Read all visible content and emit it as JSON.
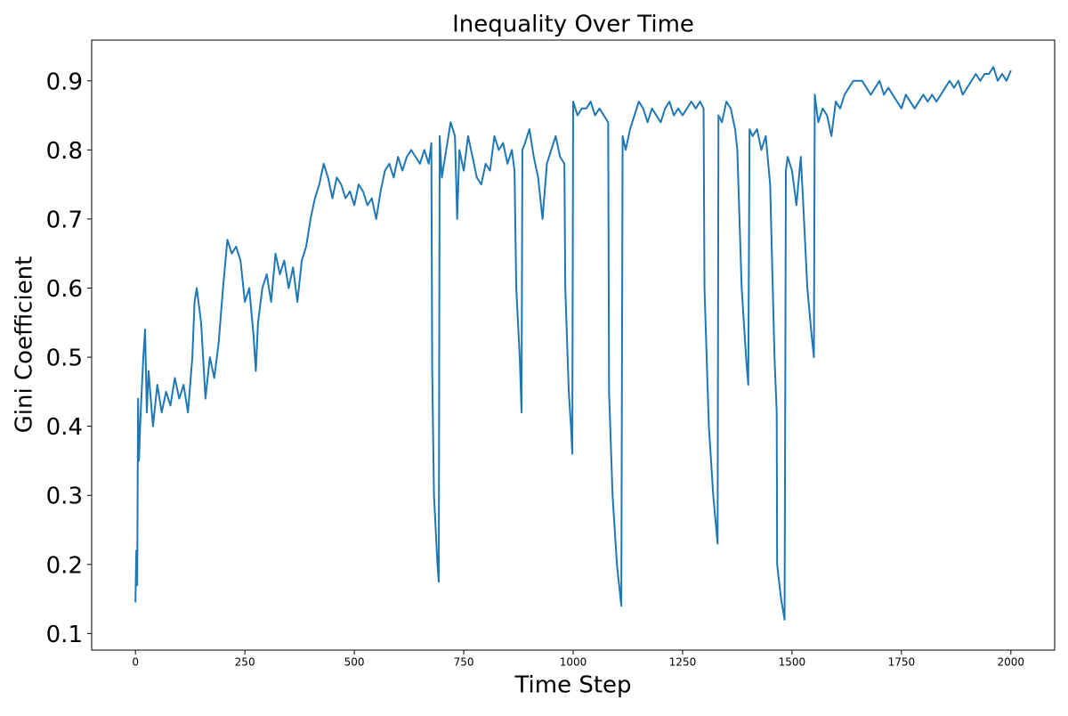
{
  "chart_data": {
    "type": "line",
    "title": "Inequality Over Time",
    "xlabel": "Time Step",
    "ylabel": "Gini Coefficient",
    "color": "#1f77b4",
    "grid": false,
    "xlim": [
      -100,
      2100
    ],
    "ylim": [
      0.076,
      0.959
    ],
    "xticks": [
      0,
      250,
      500,
      750,
      1000,
      1250,
      1500,
      1750,
      2000
    ],
    "yticks": [
      0.1,
      0.2,
      0.3,
      0.4,
      0.5,
      0.6,
      0.7,
      0.8,
      0.9
    ],
    "x": [
      0,
      2,
      4,
      6,
      8,
      12,
      18,
      22,
      26,
      30,
      40,
      50,
      60,
      70,
      80,
      90,
      100,
      110,
      120,
      130,
      135,
      140,
      150,
      160,
      170,
      180,
      190,
      200,
      210,
      220,
      230,
      240,
      250,
      260,
      270,
      275,
      280,
      290,
      300,
      310,
      320,
      330,
      340,
      350,
      360,
      370,
      380,
      390,
      400,
      410,
      420,
      430,
      440,
      450,
      460,
      470,
      480,
      490,
      500,
      510,
      520,
      530,
      540,
      550,
      560,
      570,
      580,
      590,
      600,
      610,
      620,
      630,
      640,
      650,
      660,
      670,
      676,
      678,
      682,
      690,
      693,
      695,
      700,
      710,
      720,
      730,
      735,
      740,
      750,
      760,
      770,
      780,
      790,
      800,
      810,
      820,
      830,
      840,
      850,
      860,
      866,
      870,
      878,
      882,
      884,
      890,
      900,
      910,
      920,
      930,
      940,
      950,
      960,
      970,
      980,
      982,
      990,
      995,
      998,
      1000,
      1010,
      1020,
      1030,
      1040,
      1050,
      1060,
      1070,
      1080,
      1082,
      1090,
      1100,
      1110,
      1113,
      1120,
      1130,
      1140,
      1150,
      1160,
      1170,
      1180,
      1190,
      1200,
      1210,
      1220,
      1230,
      1240,
      1250,
      1260,
      1270,
      1280,
      1290,
      1298,
      1300,
      1310,
      1320,
      1330,
      1332,
      1340,
      1350,
      1360,
      1370,
      1375,
      1385,
      1395,
      1400,
      1403,
      1410,
      1420,
      1430,
      1440,
      1450,
      1460,
      1465,
      1466,
      1475,
      1483,
      1486,
      1490,
      1500,
      1510,
      1520,
      1525,
      1535,
      1545,
      1550,
      1552,
      1560,
      1570,
      1580,
      1590,
      1600,
      1610,
      1620,
      1630,
      1640,
      1650,
      1660,
      1670,
      1680,
      1690,
      1700,
      1710,
      1720,
      1730,
      1740,
      1750,
      1760,
      1770,
      1780,
      1790,
      1800,
      1810,
      1820,
      1830,
      1840,
      1850,
      1860,
      1870,
      1880,
      1890,
      1900,
      1910,
      1920,
      1930,
      1940,
      1950,
      1960,
      1970,
      1980,
      1990,
      2000
    ],
    "values": [
      0.145,
      0.22,
      0.17,
      0.44,
      0.35,
      0.42,
      0.5,
      0.54,
      0.42,
      0.48,
      0.4,
      0.46,
      0.42,
      0.45,
      0.43,
      0.47,
      0.44,
      0.46,
      0.42,
      0.5,
      0.58,
      0.6,
      0.55,
      0.44,
      0.5,
      0.47,
      0.52,
      0.6,
      0.67,
      0.65,
      0.66,
      0.64,
      0.58,
      0.6,
      0.53,
      0.48,
      0.55,
      0.6,
      0.62,
      0.58,
      0.65,
      0.62,
      0.64,
      0.6,
      0.63,
      0.58,
      0.64,
      0.66,
      0.7,
      0.73,
      0.75,
      0.78,
      0.76,
      0.73,
      0.76,
      0.75,
      0.73,
      0.74,
      0.72,
      0.75,
      0.74,
      0.72,
      0.73,
      0.7,
      0.74,
      0.77,
      0.78,
      0.76,
      0.79,
      0.77,
      0.79,
      0.8,
      0.79,
      0.78,
      0.8,
      0.78,
      0.81,
      0.48,
      0.3,
      0.2,
      0.175,
      0.82,
      0.76,
      0.8,
      0.84,
      0.82,
      0.7,
      0.8,
      0.77,
      0.82,
      0.79,
      0.76,
      0.75,
      0.78,
      0.77,
      0.82,
      0.8,
      0.81,
      0.78,
      0.8,
      0.77,
      0.6,
      0.5,
      0.42,
      0.8,
      0.81,
      0.83,
      0.79,
      0.76,
      0.7,
      0.78,
      0.8,
      0.82,
      0.79,
      0.78,
      0.6,
      0.45,
      0.4,
      0.36,
      0.87,
      0.85,
      0.86,
      0.86,
      0.87,
      0.85,
      0.86,
      0.85,
      0.84,
      0.45,
      0.3,
      0.2,
      0.14,
      0.82,
      0.8,
      0.83,
      0.85,
      0.87,
      0.86,
      0.84,
      0.86,
      0.85,
      0.84,
      0.86,
      0.87,
      0.85,
      0.86,
      0.85,
      0.86,
      0.87,
      0.86,
      0.87,
      0.86,
      0.6,
      0.4,
      0.3,
      0.23,
      0.85,
      0.84,
      0.87,
      0.86,
      0.83,
      0.8,
      0.6,
      0.5,
      0.46,
      0.83,
      0.82,
      0.83,
      0.8,
      0.82,
      0.75,
      0.5,
      0.42,
      0.2,
      0.15,
      0.12,
      0.77,
      0.79,
      0.77,
      0.72,
      0.79,
      0.73,
      0.6,
      0.53,
      0.5,
      0.88,
      0.84,
      0.86,
      0.85,
      0.82,
      0.87,
      0.86,
      0.88,
      0.89,
      0.9,
      0.9,
      0.9,
      0.89,
      0.88,
      0.89,
      0.9,
      0.88,
      0.89,
      0.88,
      0.87,
      0.86,
      0.88,
      0.87,
      0.86,
      0.87,
      0.88,
      0.87,
      0.88,
      0.87,
      0.88,
      0.89,
      0.9,
      0.89,
      0.9,
      0.88,
      0.89,
      0.9,
      0.91,
      0.9,
      0.91,
      0.91,
      0.92,
      0.9,
      0.91,
      0.9,
      0.915
    ]
  }
}
